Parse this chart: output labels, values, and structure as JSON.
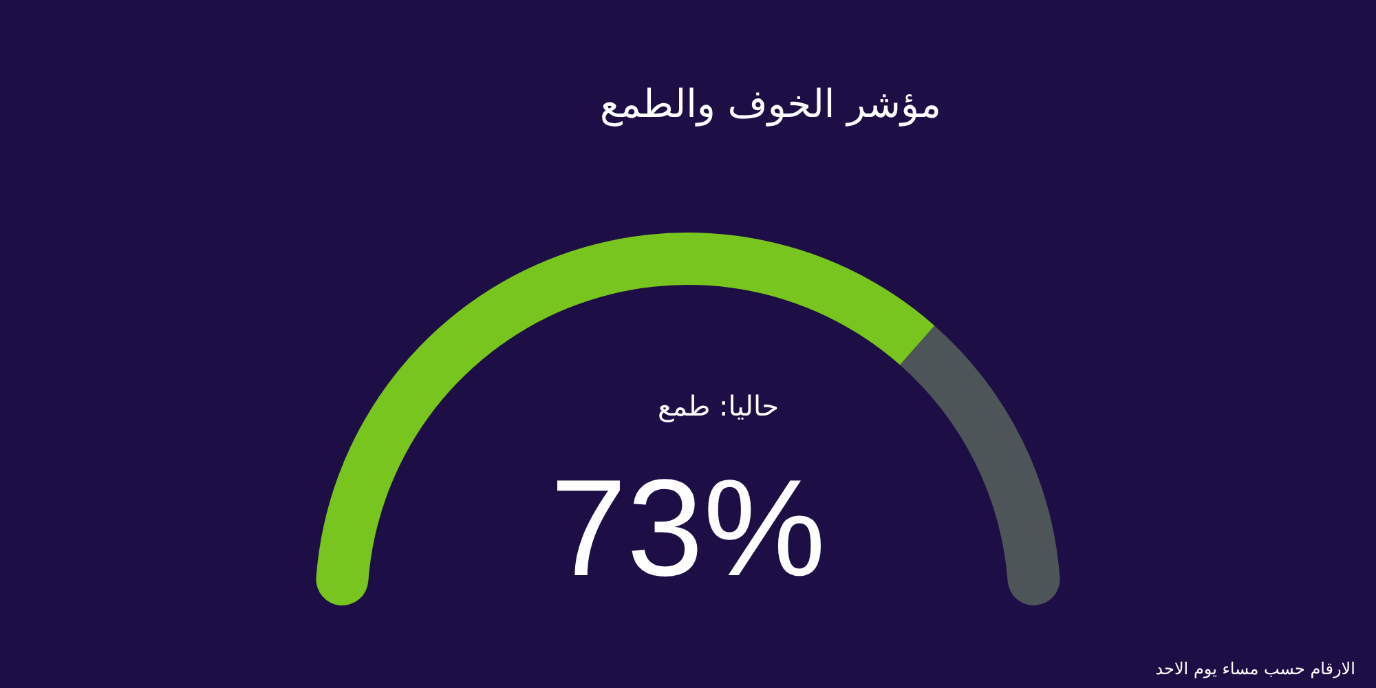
{
  "chart_data": {
    "type": "donut",
    "title": "مؤشر الخوف والطمع",
    "categories": [
      null,
      null
    ],
    "values": [
      73,
      27
    ],
    "colors": [
      "#78c51f",
      "#4d5559"
    ],
    "value_labels": [
      "73%",
      null
    ],
    "annotations": [
      "حاليا: طمع",
      "الارقام حسب مساء يوم الاحد"
    ]
  }
}
